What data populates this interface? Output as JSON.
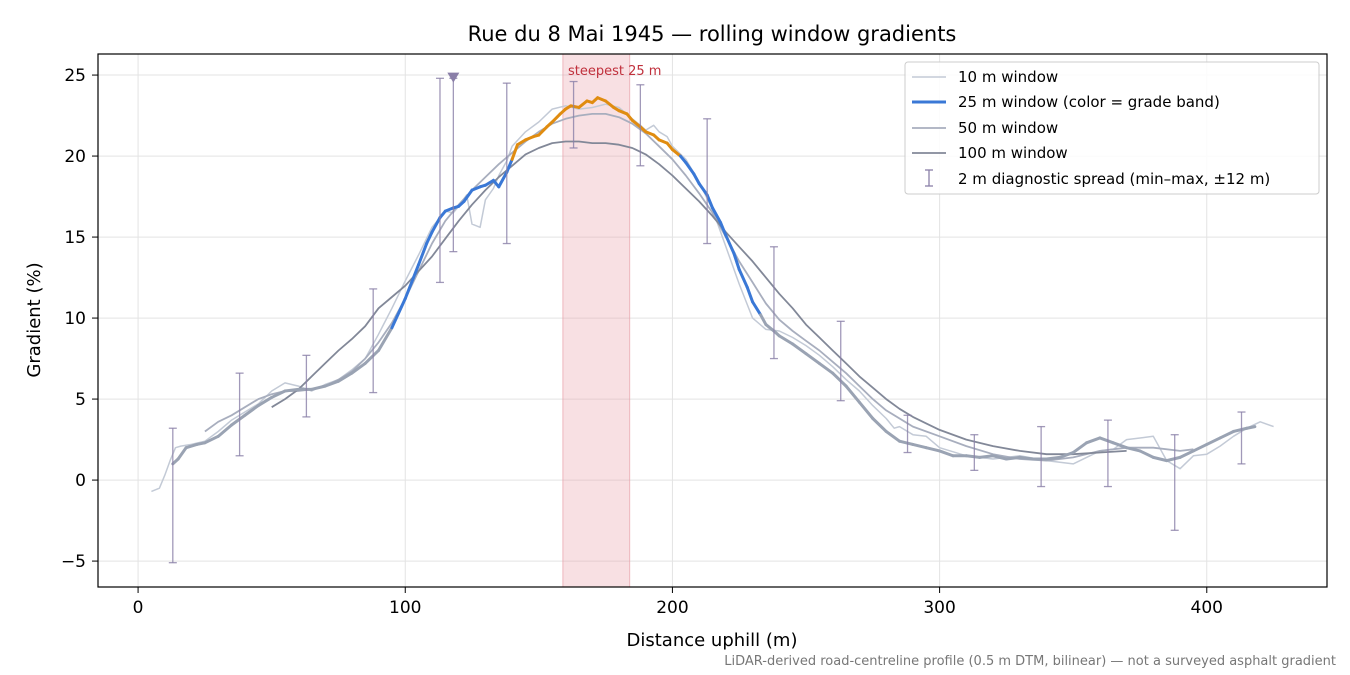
{
  "chart_data": {
    "type": "line",
    "title": "Rue du 8 Mai 1945 — rolling window gradients",
    "xlabel": "Distance uphill (m)",
    "ylabel": "Gradient (%)",
    "xlim": [
      -15,
      445
    ],
    "ylim": [
      -6.6,
      26.3
    ],
    "xticks": [
      0,
      100,
      200,
      300,
      400
    ],
    "yticks": [
      -5,
      0,
      5,
      10,
      15,
      20,
      25
    ],
    "xtick_labels": [
      "0",
      "100",
      "200",
      "300",
      "400"
    ],
    "ytick_labels": [
      "−5",
      "0",
      "5",
      "10",
      "15",
      "20",
      "25"
    ],
    "grid": true,
    "legend_position": "top-right",
    "footnote": "LiDAR-derived road-centreline profile (0.5 m DTM, bilinear) — not a surveyed asphalt gradient",
    "highlight": {
      "x_start": 159,
      "x_end": 184,
      "label": "steepest 25 m",
      "color": "#e8a0a8"
    },
    "peak_marker": {
      "x": 118,
      "y": 24.9,
      "color": "#8a7fa8"
    },
    "grade_band_colors": {
      "low": "#9aa3b3",
      "mid": "#3a78d6",
      "high": "#e08c10"
    },
    "series": [
      {
        "name": "10 m window",
        "color": "#c3cad6",
        "width": 1.5,
        "x": [
          5,
          8,
          10,
          12,
          14,
          16,
          20,
          25,
          30,
          35,
          40,
          45,
          50,
          55,
          60,
          65,
          70,
          75,
          80,
          85,
          90,
          95,
          100,
          105,
          110,
          113,
          115,
          118,
          120,
          123,
          125,
          128,
          130,
          133,
          135,
          138,
          140,
          145,
          150,
          155,
          160,
          165,
          170,
          175,
          180,
          185,
          188,
          190,
          193,
          195,
          198,
          200,
          205,
          210,
          215,
          220,
          225,
          230,
          235,
          240,
          245,
          250,
          255,
          260,
          265,
          270,
          275,
          280,
          283,
          285,
          290,
          295,
          300,
          310,
          320,
          330,
          340,
          350,
          360,
          365,
          370,
          375,
          380,
          385,
          390,
          395,
          400,
          405,
          410,
          415,
          420,
          425
        ],
        "y": [
          -0.7,
          -0.5,
          0.3,
          1.2,
          2.0,
          2.1,
          2.2,
          2.4,
          3.0,
          3.7,
          4.2,
          4.7,
          5.5,
          6.0,
          5.8,
          5.5,
          5.9,
          6.2,
          6.8,
          7.5,
          9.0,
          10.6,
          12.3,
          13.9,
          15.6,
          16.2,
          16.6,
          16.5,
          16.9,
          17.6,
          15.8,
          15.6,
          17.3,
          18.0,
          18.8,
          19.7,
          20.6,
          21.5,
          22.1,
          22.9,
          23.1,
          22.9,
          23.0,
          23.2,
          23.0,
          22.3,
          21.9,
          21.6,
          21.9,
          21.5,
          21.2,
          20.6,
          19.8,
          18.4,
          16.7,
          14.4,
          12.1,
          10.0,
          9.3,
          9.2,
          8.8,
          8.3,
          7.7,
          7.0,
          6.2,
          5.5,
          4.6,
          3.8,
          3.2,
          3.3,
          2.8,
          2.7,
          2.0,
          1.5,
          1.3,
          1.5,
          1.2,
          1.0,
          1.8,
          1.9,
          2.5,
          2.6,
          2.7,
          1.2,
          0.7,
          1.5,
          1.6,
          2.1,
          2.7,
          3.2,
          3.6,
          3.3
        ]
      },
      {
        "name": "50 m window",
        "color": "#a8aebe",
        "width": 1.8,
        "x": [
          25,
          30,
          35,
          40,
          45,
          50,
          55,
          60,
          65,
          70,
          75,
          80,
          85,
          90,
          95,
          100,
          105,
          110,
          115,
          120,
          125,
          130,
          135,
          140,
          145,
          150,
          155,
          160,
          165,
          170,
          175,
          180,
          185,
          190,
          195,
          200,
          205,
          210,
          215,
          220,
          225,
          230,
          235,
          240,
          245,
          250,
          255,
          260,
          265,
          270,
          275,
          280,
          290,
          300,
          310,
          320,
          330,
          340,
          350,
          360,
          370,
          380,
          390,
          395
        ],
        "y": [
          3.0,
          3.6,
          4.0,
          4.5,
          5.0,
          5.3,
          5.5,
          5.5,
          5.6,
          5.8,
          6.2,
          6.7,
          7.5,
          8.5,
          9.7,
          11.2,
          12.9,
          14.6,
          16.0,
          17.0,
          17.9,
          18.7,
          19.5,
          20.2,
          20.9,
          21.5,
          22.0,
          22.3,
          22.5,
          22.6,
          22.6,
          22.4,
          22.0,
          21.4,
          20.6,
          19.8,
          18.8,
          17.7,
          16.5,
          15.0,
          13.5,
          12.2,
          10.9,
          9.9,
          9.2,
          8.6,
          8.0,
          7.3,
          6.6,
          5.8,
          5.0,
          4.3,
          3.3,
          2.7,
          2.1,
          1.6,
          1.3,
          1.2,
          1.4,
          1.8,
          2.0,
          2.0,
          1.8,
          1.9
        ]
      },
      {
        "name": "100 m window",
        "color": "#828898",
        "width": 1.8,
        "x": [
          50,
          55,
          60,
          65,
          70,
          75,
          80,
          85,
          90,
          95,
          100,
          105,
          110,
          115,
          120,
          125,
          130,
          135,
          140,
          145,
          150,
          155,
          160,
          165,
          170,
          175,
          180,
          185,
          190,
          195,
          200,
          205,
          210,
          215,
          220,
          225,
          230,
          235,
          240,
          245,
          250,
          255,
          260,
          265,
          270,
          275,
          280,
          285,
          290,
          295,
          300,
          310,
          320,
          330,
          340,
          350,
          360,
          370
        ],
        "y": [
          4.5,
          5.0,
          5.6,
          6.4,
          7.2,
          8.0,
          8.7,
          9.5,
          10.6,
          11.3,
          12.0,
          12.9,
          13.8,
          14.9,
          16.0,
          17.0,
          17.9,
          18.7,
          19.4,
          20.1,
          20.5,
          20.8,
          20.9,
          20.9,
          20.8,
          20.8,
          20.7,
          20.5,
          20.1,
          19.5,
          18.8,
          18.0,
          17.2,
          16.3,
          15.3,
          14.4,
          13.5,
          12.5,
          11.5,
          10.6,
          9.6,
          8.8,
          8.0,
          7.2,
          6.4,
          5.7,
          5.0,
          4.4,
          3.9,
          3.5,
          3.1,
          2.5,
          2.1,
          1.8,
          1.6,
          1.6,
          1.7,
          1.8
        ]
      },
      {
        "name": "25 m window (color = grade band)",
        "color": "#3a78d6",
        "width": 3,
        "banded": true,
        "x": [
          13,
          15,
          18,
          22,
          25,
          30,
          35,
          40,
          45,
          50,
          55,
          60,
          65,
          70,
          75,
          80,
          85,
          90,
          95,
          100,
          105,
          108,
          110,
          113,
          115,
          118,
          120,
          122,
          125,
          128,
          130,
          133,
          135,
          138,
          140,
          142,
          145,
          148,
          150,
          153,
          155,
          158,
          160,
          162,
          165,
          168,
          170,
          172,
          175,
          178,
          180,
          183,
          185,
          188,
          190,
          193,
          195,
          198,
          200,
          203,
          205,
          208,
          210,
          213,
          215,
          218,
          220,
          223,
          225,
          228,
          230,
          233,
          235,
          238,
          240,
          245,
          250,
          255,
          260,
          265,
          270,
          275,
          280,
          285,
          290,
          295,
          300,
          305,
          310,
          315,
          320,
          325,
          330,
          335,
          340,
          345,
          350,
          355,
          360,
          365,
          370,
          375,
          380,
          385,
          390,
          395,
          400,
          405,
          410,
          415,
          418
        ],
        "y": [
          1.0,
          1.3,
          2.0,
          2.2,
          2.3,
          2.7,
          3.4,
          4.0,
          4.6,
          5.1,
          5.5,
          5.6,
          5.6,
          5.8,
          6.1,
          6.6,
          7.2,
          8.0,
          9.4,
          11.2,
          13.3,
          14.6,
          15.3,
          16.2,
          16.6,
          16.8,
          16.9,
          17.2,
          17.9,
          18.1,
          18.2,
          18.5,
          18.1,
          19.0,
          19.8,
          20.7,
          21.0,
          21.2,
          21.3,
          21.8,
          22.1,
          22.6,
          22.9,
          23.1,
          23.0,
          23.4,
          23.3,
          23.6,
          23.4,
          23.0,
          22.8,
          22.6,
          22.2,
          21.8,
          21.5,
          21.3,
          21.0,
          20.8,
          20.4,
          20.0,
          19.6,
          18.9,
          18.3,
          17.6,
          16.8,
          15.9,
          15.1,
          14.0,
          13.0,
          11.9,
          11.0,
          10.2,
          9.6,
          9.2,
          8.9,
          8.4,
          7.8,
          7.2,
          6.6,
          5.8,
          4.8,
          3.8,
          3.0,
          2.4,
          2.2,
          2.0,
          1.8,
          1.5,
          1.5,
          1.4,
          1.5,
          1.3,
          1.4,
          1.3,
          1.3,
          1.4,
          1.7,
          2.3,
          2.6,
          2.3,
          2.0,
          1.8,
          1.4,
          1.2,
          1.4,
          1.8,
          2.2,
          2.6,
          3.0,
          3.2,
          3.3
        ]
      }
    ],
    "error_bars": {
      "name": "2 m diagnostic spread (min–max, ±12 m)",
      "color": "#8a7fa8",
      "points": [
        {
          "x": 13,
          "low": -5.1,
          "high": 3.2
        },
        {
          "x": 38,
          "low": 1.5,
          "high": 6.6
        },
        {
          "x": 63,
          "low": 3.9,
          "high": 7.7
        },
        {
          "x": 88,
          "low": 5.4,
          "high": 11.8
        },
        {
          "x": 113,
          "low": 12.2,
          "high": 24.8
        },
        {
          "x": 118,
          "low": 14.1,
          "high": 24.8
        },
        {
          "x": 138,
          "low": 14.6,
          "high": 24.5
        },
        {
          "x": 163,
          "low": 20.5,
          "high": 24.6
        },
        {
          "x": 188,
          "low": 19.4,
          "high": 24.4
        },
        {
          "x": 213,
          "low": 14.6,
          "high": 22.3
        },
        {
          "x": 238,
          "low": 7.5,
          "high": 14.4
        },
        {
          "x": 263,
          "low": 4.9,
          "high": 9.8
        },
        {
          "x": 288,
          "low": 1.7,
          "high": 4.0
        },
        {
          "x": 313,
          "low": 0.6,
          "high": 2.8
        },
        {
          "x": 338,
          "low": -0.4,
          "high": 3.3
        },
        {
          "x": 363,
          "low": -0.4,
          "high": 3.7
        },
        {
          "x": 388,
          "low": -3.1,
          "high": 2.8
        },
        {
          "x": 413,
          "low": 1.0,
          "high": 4.2
        }
      ]
    }
  }
}
